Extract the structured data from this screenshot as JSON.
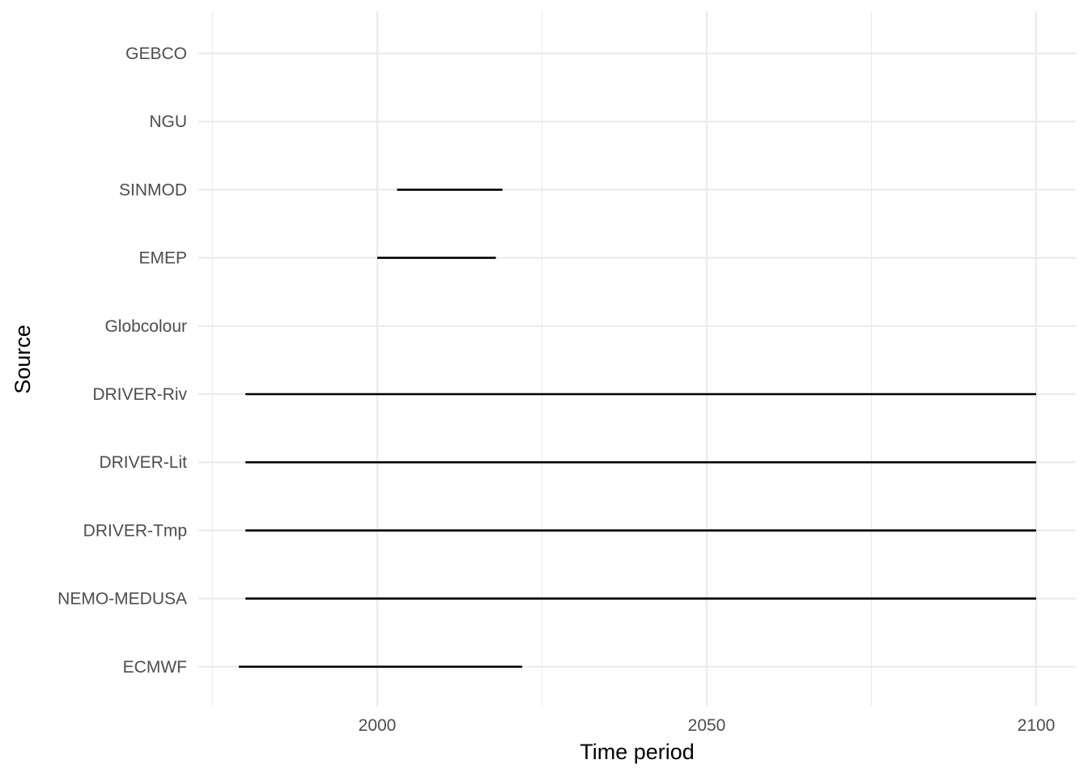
{
  "chart_data": {
    "type": "range",
    "title": "",
    "xlabel": "Time period",
    "ylabel": "Source",
    "xlim": [
      1975,
      2102
    ],
    "x_major_ticks": [
      2000,
      2050,
      2100
    ],
    "x_minor_ticks": [
      1975,
      2025,
      2075
    ],
    "grid": true,
    "legend": "none",
    "line_color": "#000000",
    "categories": [
      "GEBCO",
      "NGU",
      "SINMOD",
      "EMEP",
      "Globcolour",
      "DRIVER-Riv",
      "DRIVER-Lit",
      "DRIVER-Tmp",
      "NEMO-MEDUSA",
      "ECMWF"
    ],
    "ranges": [
      {
        "category": "GEBCO",
        "start": null,
        "end": null
      },
      {
        "category": "NGU",
        "start": null,
        "end": null
      },
      {
        "category": "SINMOD",
        "start": 2003,
        "end": 2019
      },
      {
        "category": "EMEP",
        "start": 2000,
        "end": 2018
      },
      {
        "category": "Globcolour",
        "start": null,
        "end": null
      },
      {
        "category": "DRIVER-Riv",
        "start": 1980,
        "end": 2100
      },
      {
        "category": "DRIVER-Lit",
        "start": 1980,
        "end": 2100
      },
      {
        "category": "DRIVER-Tmp",
        "start": 1980,
        "end": 2100
      },
      {
        "category": "NEMO-MEDUSA",
        "start": 1980,
        "end": 2100
      },
      {
        "category": "ECMWF",
        "start": 1979,
        "end": 2022
      }
    ]
  }
}
